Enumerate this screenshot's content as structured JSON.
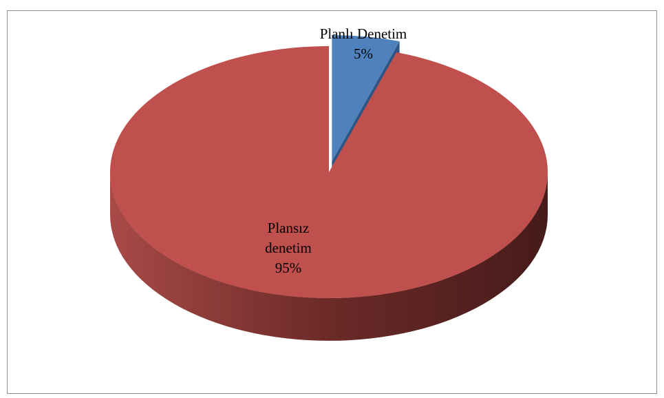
{
  "chart_data": {
    "type": "pie",
    "title": "",
    "three_d": true,
    "categories": [
      "Planlı Denetim",
      "Plansız denetim"
    ],
    "values": [
      5,
      95
    ],
    "colors": [
      "#4f81bd",
      "#c0504d"
    ],
    "labels": [
      {
        "lines": [
          "Planlı Denetim",
          "5%"
        ]
      },
      {
        "lines": [
          "Plansız",
          "denetim",
          "95%"
        ]
      }
    ],
    "legend": "none",
    "exploded": [
      "Planlı Denetim"
    ]
  }
}
